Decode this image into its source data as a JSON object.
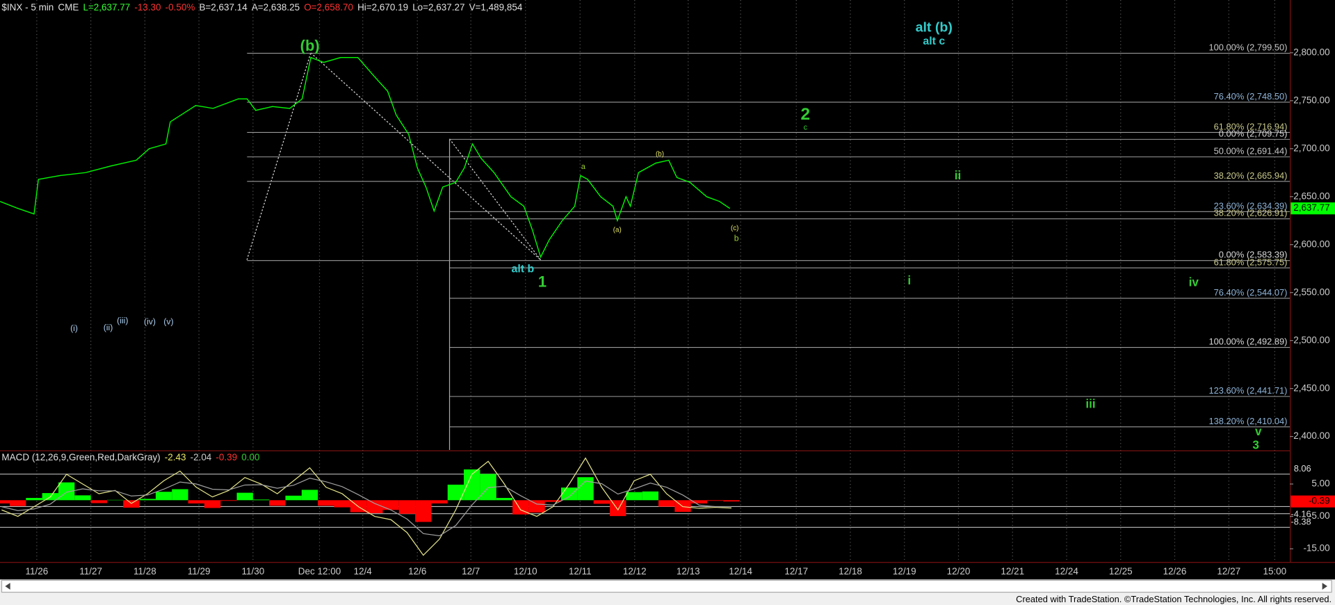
{
  "chart_data": [
    {
      "type": "line",
      "header": [
        {
          "text": "$INX - 5 min",
          "color": "#e0e0e0"
        },
        {
          "text": "CME",
          "color": "#e0e0e0"
        },
        {
          "text": "L=2,637.77",
          "color": "#33ff33"
        },
        {
          "text": "-13.30",
          "color": "#ff3333"
        },
        {
          "text": "-0.50%",
          "color": "#ff3333"
        },
        {
          "text": "B=2,637.14",
          "color": "#e0e0e0"
        },
        {
          "text": "A=2,638.25",
          "color": "#e0e0e0"
        },
        {
          "text": "O=2,658.70",
          "color": "#ff3333"
        },
        {
          "text": "Hi=2,670.19",
          "color": "#e0e0e0"
        },
        {
          "text": "Lo=2,637.27",
          "color": "#e0e0e0"
        },
        {
          "text": "V=1,489,854",
          "color": "#e0e0e0"
        }
      ],
      "series": [
        {
          "color": "#00ff00",
          "x": [
            -0.68,
            -0.36,
            -0.05,
            0.03,
            0.43,
            0.9,
            1.37,
            1.84,
            2.08,
            2.39,
            2.47,
            2.94,
            3.26,
            3.73,
            3.89,
            4.05,
            4.36,
            4.68,
            4.91,
            5.07,
            5.31,
            5.62,
            5.94,
            6.25,
            6.49,
            6.65,
            6.88,
            7.04,
            7.2,
            7.35,
            7.51,
            7.75,
            7.91,
            8.06,
            8.22,
            8.46,
            8.77,
            9.01,
            9.17,
            9.32,
            9.48,
            9.72,
            9.95,
            10.06,
            10.19,
            10.43,
            10.66,
            10.74,
            10.9,
            10.98,
            11.13,
            11.45,
            11.69,
            11.84,
            12.08,
            12.39,
            12.63,
            12.82
          ],
          "values": [
            2645,
            2638,
            2632,
            2668,
            2672,
            2675,
            2682,
            2688,
            2700,
            2705,
            2728,
            2745,
            2742,
            2752,
            2752,
            2740,
            2744,
            2742,
            2752,
            2795,
            2790,
            2795,
            2795,
            2775,
            2760,
            2735,
            2715,
            2680,
            2660,
            2635,
            2660,
            2665,
            2680,
            2705,
            2690,
            2675,
            2650,
            2640,
            2615,
            2587,
            2605,
            2625,
            2640,
            2672,
            2668,
            2650,
            2640,
            2625,
            2650,
            2640,
            2675,
            2685,
            2688,
            2670,
            2665,
            2650,
            2645,
            2637.77
          ]
        }
      ],
      "last": {
        "value": 2637.77,
        "label": "2,637.77",
        "color": "#00ff00"
      },
      "xlim": [
        -0.68,
        23.18
      ],
      "xticks": [
        {
          "value": 0,
          "label": "11/26"
        },
        {
          "value": 1,
          "label": "11/27"
        },
        {
          "value": 2,
          "label": "11/28"
        },
        {
          "value": 3,
          "label": "11/29"
        },
        {
          "value": 4,
          "label": "11/30"
        },
        {
          "value": 5.23,
          "label": "Dec 12:00"
        },
        {
          "value": 6.03,
          "label": "12/4"
        },
        {
          "value": 7.04,
          "label": "12/6"
        },
        {
          "value": 8.03,
          "label": "12/7"
        },
        {
          "value": 9.04,
          "label": "12/10"
        },
        {
          "value": 10.05,
          "label": "12/11"
        },
        {
          "value": 11.06,
          "label": "12/12"
        },
        {
          "value": 12.05,
          "label": "12/13"
        },
        {
          "value": 13.02,
          "label": "12/14"
        },
        {
          "value": 14.05,
          "label": "12/17"
        },
        {
          "value": 15.05,
          "label": "12/18"
        },
        {
          "value": 16.05,
          "label": "12/19"
        },
        {
          "value": 17.05,
          "label": "12/20"
        },
        {
          "value": 18.05,
          "label": "12/21"
        },
        {
          "value": 19.05,
          "label": "12/24"
        },
        {
          "value": 20.05,
          "label": "12/25"
        },
        {
          "value": 21.05,
          "label": "12/26"
        },
        {
          "value": 22.05,
          "label": "12/27"
        },
        {
          "value": 22.9,
          "label": "15:00"
        }
      ],
      "ylim": [
        2386,
        2855
      ],
      "yticks": [
        {
          "value": 2400,
          "label": "2,400.00"
        },
        {
          "value": 2450,
          "label": "2,450.00"
        },
        {
          "value": 2500,
          "label": "2,500.00"
        },
        {
          "value": 2550,
          "label": "2,550.00"
        },
        {
          "value": 2600,
          "label": "2,600.00"
        },
        {
          "value": 2650,
          "label": "2,650.00"
        },
        {
          "value": 2700,
          "label": "2,700.00"
        },
        {
          "value": 2750,
          "label": "2,750.00"
        },
        {
          "value": 2800,
          "label": "2,800.00"
        }
      ],
      "grid": true,
      "fib": [
        {
          "label": "100.00% (2,799.50)",
          "value": 2799.5,
          "from": 3.89,
          "color": "#c8c8c8"
        },
        {
          "label": "76.40% (2,748.50)",
          "value": 2748.5,
          "from": 3.89,
          "color": "#8fb4d8"
        },
        {
          "label": "61.80% (2,716.94)",
          "value": 2716.94,
          "from": 3.89,
          "color": "#c8c88c"
        },
        {
          "label": "0.00% (2,709.75)",
          "value": 2709.75,
          "from": 7.64,
          "color": "#d8d8d8"
        },
        {
          "label": "50.00% (2,691.44)",
          "value": 2691.44,
          "from": 3.89,
          "color": "#c8c8c8"
        },
        {
          "label": "38.20% (2,665.94)",
          "value": 2665.94,
          "from": 3.89,
          "color": "#c8c88c"
        },
        {
          "label": "23.60% (2,634.39)",
          "value": 2634.39,
          "from": 7.64,
          "color": "#8fb4d8"
        },
        {
          "label": "38.20% (2,626.91)",
          "value": 2626.91,
          "from": 7.64,
          "color": "#c8c88c"
        },
        {
          "label": "0.00% (2,583.39)",
          "value": 2583.39,
          "from": 3.89,
          "color": "#d8d8d8"
        },
        {
          "label": "61.80% (2,575.75)",
          "value": 2575.75,
          "from": 7.64,
          "color": "#c8c88c"
        },
        {
          "label": "76.40% (2,544.07)",
          "value": 2544.07,
          "from": 7.64,
          "color": "#8fb4d8"
        },
        {
          "label": "100.00% (2,492.89)",
          "value": 2492.89,
          "from": 7.64,
          "color": "#d8d8d8"
        },
        {
          "label": "123.60% (2,441.71)",
          "value": 2441.71,
          "from": 7.64,
          "color": "#8fb4d8"
        },
        {
          "label": "138.20% (2,410.04)",
          "value": 2410.04,
          "from": 7.64,
          "color": "#8fb4d8"
        }
      ],
      "waves": [
        {
          "text": "(b)",
          "color": "#33cc33"
        },
        {
          "text": "alt (b)",
          "color": "#33cccc"
        },
        {
          "text": "alt c",
          "color": "#33cccc"
        },
        {
          "text": "2",
          "color": "#33cc33"
        },
        {
          "text": "c",
          "color": "#33cc33"
        },
        {
          "text": "a",
          "color": "#99cc33"
        },
        {
          "text": "(b)",
          "color": "#e6e666"
        },
        {
          "text": "(a)",
          "color": "#e6e666"
        },
        {
          "text": "(c)",
          "color": "#e6e666"
        },
        {
          "text": "b",
          "color": "#99cc33"
        },
        {
          "text": "ii",
          "color": "#33cc33"
        },
        {
          "text": "alt b",
          "color": "#33cccc"
        },
        {
          "text": "1",
          "color": "#33cc33"
        },
        {
          "text": "i",
          "color": "#33cc33"
        },
        {
          "text": "iv",
          "color": "#33cc33"
        },
        {
          "text": "(i)",
          "color": "#aaccee"
        },
        {
          "text": "(ii)",
          "color": "#aaccee"
        },
        {
          "text": "(iii)",
          "color": "#aaccee"
        },
        {
          "text": "(iv)",
          "color": "#aaccee"
        },
        {
          "text": "(v)",
          "color": "#aaccee"
        },
        {
          "text": "iii",
          "color": "#33cc33"
        },
        {
          "text": "v",
          "color": "#33cc33"
        },
        {
          "text": "3",
          "color": "#33cc33"
        }
      ]
    },
    {
      "type": "macd",
      "title": [
        {
          "text": "MACD (12,26,9,Green,Red,DarkGray)",
          "color": "#e0e0e0"
        },
        {
          "text": "-2.43",
          "color": "#e6e666"
        },
        {
          "text": "-2.04",
          "color": "#cccccc"
        },
        {
          "text": "-0.39",
          "color": "#ff3333"
        },
        {
          "text": "0.00",
          "color": "#33cc33"
        }
      ],
      "x": [
        -0.65,
        -0.35,
        -0.05,
        0.25,
        0.55,
        0.85,
        1.15,
        1.45,
        1.75,
        2.05,
        2.35,
        2.65,
        2.95,
        3.25,
        3.55,
        3.85,
        4.15,
        4.45,
        4.75,
        5.05,
        5.35,
        5.65,
        5.95,
        6.25,
        6.55,
        6.85,
        7.15,
        7.45,
        7.75,
        8.05,
        8.35,
        8.65,
        8.95,
        9.25,
        9.55,
        9.85,
        10.15,
        10.45,
        10.75,
        11.05,
        11.35,
        11.65,
        11.95,
        12.25,
        12.55,
        12.85
      ],
      "series": [
        {
          "color": "#e6e68c",
          "values": [
            -3,
            -5,
            -2,
            1,
            8,
            5,
            2,
            3,
            -1,
            2,
            6,
            9,
            4,
            1,
            3,
            7,
            5,
            2,
            6,
            10,
            4,
            2,
            -2,
            -5,
            -6,
            -10,
            -17,
            -12,
            -3,
            8,
            12,
            5,
            -3,
            -5,
            -2,
            5,
            13,
            4,
            -3,
            6,
            8,
            2,
            -2,
            -2.5,
            -2.2,
            -2.43
          ]
        },
        {
          "color": "#a0a0a0",
          "values": [
            -2,
            -3.2,
            -2.7,
            -1.2,
            2.5,
            3.5,
            2.9,
            2.9,
            1.3,
            1.6,
            3.4,
            5.6,
            5,
            3.4,
            3.2,
            4.7,
            4.8,
            3.7,
            4.6,
            6.8,
            5.7,
            4.2,
            1.7,
            -1,
            -3,
            -5.8,
            -10.3,
            -11,
            -7.8,
            -1.5,
            3.9,
            4.3,
            1.4,
            -1.2,
            -1.5,
            1.1,
            5.9,
            5.1,
            1.9,
            3.5,
            5.3,
            4,
            1.6,
            -1.5,
            -2,
            -2.04
          ]
        }
      ],
      "hist": {
        "up": "#00ff00",
        "down": "#ff0000",
        "values": [
          -1,
          -1.8,
          0.7,
          2.2,
          5.5,
          1.5,
          -0.9,
          0.1,
          -2.3,
          0.4,
          2.6,
          3.4,
          -1,
          -2.4,
          -0.2,
          2.3,
          0.2,
          -1.7,
          1.4,
          3.2,
          -1.7,
          -2.2,
          -3.7,
          -4,
          -3,
          -4.2,
          -6.7,
          -1,
          4.8,
          9.5,
          8.1,
          0.7,
          -4.4,
          -3.8,
          -0.5,
          3.9,
          7.1,
          -1.1,
          -4.9,
          2.5,
          2.7,
          -2,
          -3.6,
          -1,
          -0.2,
          -0.39
        ]
      },
      "ylim": [
        -19.2,
        15
      ],
      "yticks": [
        {
          "value": 5,
          "label": "5.00"
        },
        {
          "value": -5,
          "label": "-5.00"
        },
        {
          "value": -15,
          "label": "-15.00"
        }
      ],
      "levels": [
        8.06,
        -1.97,
        -4.16,
        -8.38
      ],
      "last": {
        "value": -0.39,
        "color": "#ff0000"
      }
    }
  ],
  "footer": "Created with TradeStation. ©TradeStation Technologies, Inc. All rights reserved."
}
